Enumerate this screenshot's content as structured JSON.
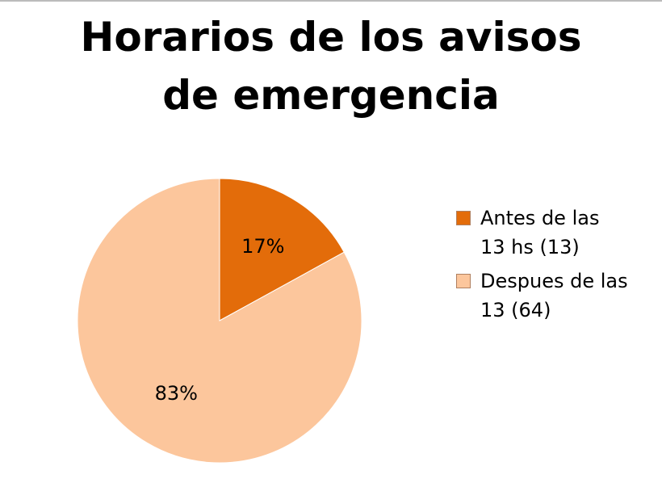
{
  "chart_data": {
    "type": "pie",
    "title": "Horarios de los avisos de emergencia",
    "categories": [
      "Antes de las 13 hs (13)",
      "Despues de las 13 (64)"
    ],
    "values": [
      17,
      83
    ],
    "value_labels": [
      "17%",
      "83%"
    ],
    "colors": [
      "#e36c0a",
      "#fcc69c"
    ],
    "legend": "right"
  }
}
